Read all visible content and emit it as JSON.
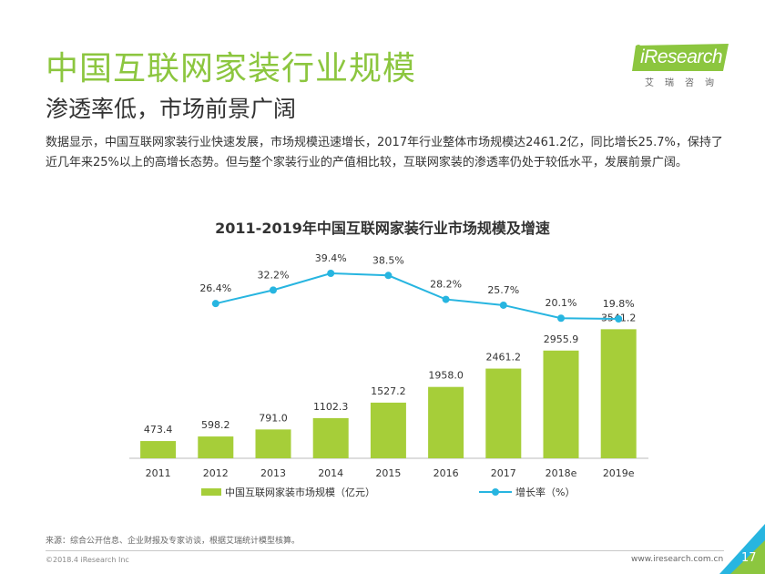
{
  "header": {
    "title": "中国互联网家装行业规模",
    "subtitle": "渗透率低，市场前景广阔",
    "body": "数据显示，中国互联网家装行业快速发展，市场规模迅速增长，2017年行业整体市场规模达2461.2亿，同比增长25.7%，保持了近几年来25%以上的高增长态势。但与整个家装行业的产值相比较，互联网家装的渗透率仍处于较低水平，发展前景广阔。"
  },
  "logo": {
    "word": "iResearch",
    "sub": "艾瑞咨询"
  },
  "colors": {
    "title_green": "#8cc63f",
    "bar_green": "#a6ce39",
    "line_blue": "#27b5e0"
  },
  "chart_data": {
    "type": "bar",
    "title": "2011-2019年中国互联网家装行业市场规模及增速",
    "categories": [
      "2011",
      "2012",
      "2013",
      "2014",
      "2015",
      "2016",
      "2017",
      "2018e",
      "2019e"
    ],
    "series": [
      {
        "name": "中国互联网家装市场规模（亿元）",
        "type": "bar",
        "values": [
          473.4,
          598.2,
          791.0,
          1102.3,
          1527.2,
          1958.0,
          2461.2,
          2955.9,
          3541.2
        ],
        "labels": [
          "473.4",
          "598.2",
          "791.0",
          "1102.3",
          "1527.2",
          "1958.0",
          "2461.2",
          "2955.9",
          "3541.2"
        ]
      },
      {
        "name": "增长率（%）",
        "type": "line",
        "values": [
          null,
          26.4,
          32.2,
          39.4,
          38.5,
          28.2,
          25.7,
          20.1,
          19.8
        ],
        "labels": [
          "",
          "26.4%",
          "32.2%",
          "39.4%",
          "38.5%",
          "28.2%",
          "25.7%",
          "20.1%",
          "19.8%"
        ]
      }
    ],
    "xlabel": "",
    "ylabel": "",
    "grid": false,
    "legend": "bottom"
  },
  "footer": {
    "source": "来源：综合公开信息、企业财报及专家访谈，根据艾瑞统计模型核算。",
    "copyright": "©2018.4 iResearch Inc",
    "website": "www.iresearch.com.cn",
    "page": "17"
  }
}
